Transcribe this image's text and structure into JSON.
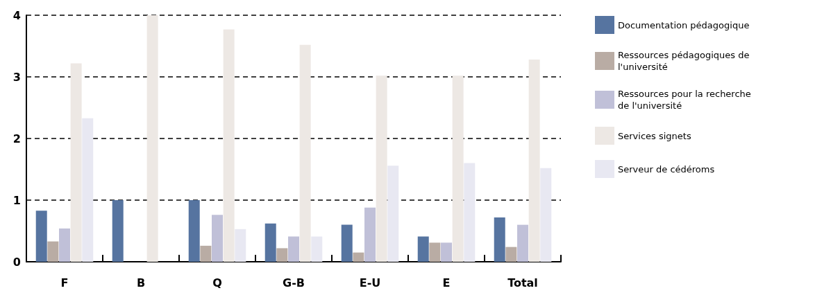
{
  "chart_data": {
    "type": "bar",
    "categories": [
      "F",
      "B",
      "Q",
      "G-B",
      "E-U",
      "E",
      "Total"
    ],
    "series": [
      {
        "name": "Documentation pédagogique",
        "color": "#5674a0",
        "values": [
          0.83,
          1.0,
          1.0,
          0.62,
          0.6,
          0.41,
          0.72
        ]
      },
      {
        "name": "Ressources pédagogiques de l'université",
        "color": "#b9aca4",
        "values": [
          0.33,
          null,
          0.26,
          0.22,
          0.15,
          0.31,
          0.24
        ]
      },
      {
        "name": "Ressources pour la recherche de l'université",
        "color": "#c0c0d8",
        "values": [
          0.54,
          null,
          0.76,
          0.41,
          0.88,
          0.31,
          0.6
        ]
      },
      {
        "name": "Services signets",
        "color": "#ede8e4",
        "values": [
          3.22,
          4.0,
          3.77,
          3.52,
          3.02,
          3.02,
          3.28
        ]
      },
      {
        "name": "Serveur de cédéroms",
        "color": "#e8e8f2",
        "values": [
          2.33,
          null,
          0.53,
          0.41,
          1.56,
          1.6,
          1.52
        ]
      }
    ],
    "ylim": [
      0,
      4
    ],
    "yticks": [
      0,
      1,
      2,
      3,
      4
    ],
    "grid": "y",
    "line_style": "dashed",
    "legend": "right"
  }
}
